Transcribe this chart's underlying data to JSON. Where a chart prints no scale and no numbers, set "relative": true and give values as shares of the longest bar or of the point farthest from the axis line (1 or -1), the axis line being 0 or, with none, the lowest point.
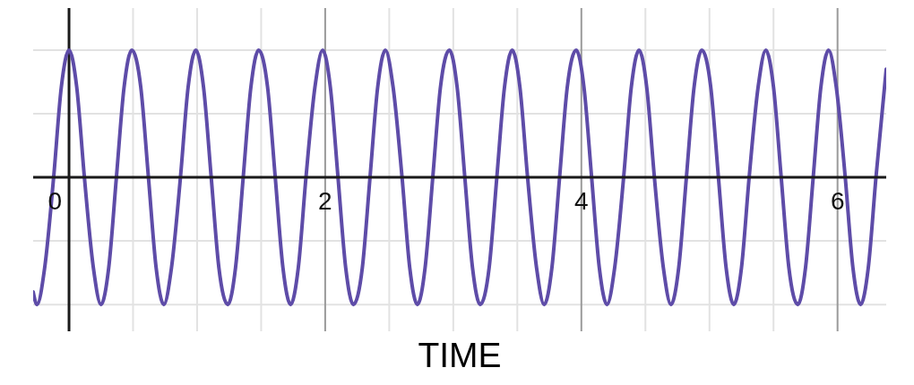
{
  "chart_data": {
    "type": "line",
    "xlabel": "TIME",
    "relative": true,
    "grid": true,
    "marker": "none",
    "line_style": "solid",
    "xlim": [
      -0.28,
      6.38
    ],
    "xticks": [
      0,
      {
        "value": 0.5,
        "label": null
      },
      {
        "value": 1,
        "label": null
      },
      {
        "value": 1.5,
        "label": null
      },
      2,
      {
        "value": 2.5,
        "label": null
      },
      {
        "value": 3,
        "label": null
      },
      {
        "value": 3.5,
        "label": null
      },
      4,
      {
        "value": 4.5,
        "label": null
      },
      {
        "value": 5,
        "label": null
      },
      {
        "value": 5.5,
        "label": null
      },
      6
    ],
    "x": [
      -0.28,
      -0.25,
      -0.19,
      -0.12,
      -0.06,
      0,
      0.06,
      0.12,
      0.19,
      0.25,
      0.31,
      0.37,
      0.43,
      0.49,
      0.56,
      0.62,
      0.68,
      0.74,
      0.8,
      0.87,
      0.93,
      0.99,
      1.05,
      1.11,
      1.17,
      1.24,
      1.3,
      1.36,
      1.42,
      1.48,
      1.55,
      1.61,
      1.67,
      1.73,
      1.79,
      1.85,
      1.92,
      1.98,
      2.04,
      2.1,
      2.16,
      2.22,
      2.29,
      2.35,
      2.41,
      2.47,
      2.53,
      2.6,
      2.66,
      2.72,
      2.78,
      2.84,
      2.9,
      2.97,
      3.03,
      3.09,
      3.15,
      3.21,
      3.28,
      3.34,
      3.4,
      3.46,
      3.52,
      3.58,
      3.65,
      3.71,
      3.77,
      3.83,
      3.89,
      3.96,
      4.02,
      4.08,
      4.14,
      4.2,
      4.26,
      4.33,
      4.39,
      4.45,
      4.51,
      4.57,
      4.64,
      4.7,
      4.76,
      4.82,
      4.88,
      4.94,
      5.01,
      5.07,
      5.13,
      5.19,
      5.25,
      5.31,
      5.38,
      5.44,
      5.5,
      5.56,
      5.62,
      5.69,
      5.75,
      5.81,
      5.87,
      5.93,
      5.99,
      6.06,
      6.12,
      6.18,
      6.24,
      6.3,
      6.38
    ],
    "series": [
      {
        "color": "#5e4ca8",
        "values": [
          -0.9,
          -1,
          -0.71,
          0,
          0.71,
          1,
          0.71,
          0,
          -0.71,
          -1,
          -0.71,
          0,
          0.71,
          1,
          0.71,
          0,
          -0.71,
          -1,
          -0.71,
          0,
          0.71,
          1,
          0.71,
          0,
          -0.71,
          -1,
          -0.71,
          0,
          0.71,
          1,
          0.71,
          0,
          -0.71,
          -1,
          -0.71,
          0,
          0.71,
          1,
          0.71,
          0,
          -0.71,
          -1,
          -0.71,
          0,
          0.71,
          1,
          0.71,
          0,
          -0.71,
          -1,
          -0.71,
          0,
          0.71,
          1,
          0.71,
          0,
          -0.71,
          -1,
          -0.71,
          0,
          0.71,
          1,
          0.71,
          0,
          -0.71,
          -1,
          -0.71,
          0,
          0.71,
          1,
          0.71,
          0,
          -0.71,
          -1,
          -0.71,
          0,
          0.71,
          1,
          0.71,
          0,
          -0.71,
          -1,
          -0.71,
          0,
          0.71,
          1,
          0.71,
          0,
          -0.71,
          -1,
          -0.71,
          0,
          0.71,
          1,
          0.71,
          0,
          -0.71,
          -1,
          -0.71,
          0,
          0.71,
          1,
          0.71,
          0,
          -0.71,
          -1,
          -0.71,
          0,
          0.85
        ]
      }
    ]
  }
}
